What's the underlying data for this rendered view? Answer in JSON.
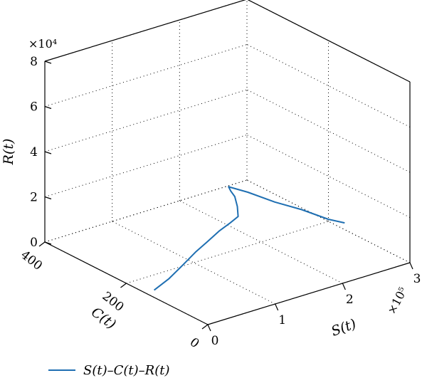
{
  "chart_data": {
    "type": "line",
    "projection": "3d",
    "grid": true,
    "legend_position": "bottom-left",
    "axes": {
      "x": {
        "label": "S(t)",
        "lim": [
          0,
          300000
        ],
        "ticks": [
          0,
          100000,
          200000,
          300000
        ],
        "tick_labels": [
          "0",
          "1",
          "2",
          "3"
        ],
        "multiplier": "×10⁵"
      },
      "y": {
        "label": "C(t)",
        "lim": [
          0,
          400
        ],
        "ticks": [
          0,
          200,
          400
        ],
        "tick_labels": [
          "0",
          "200",
          "400"
        ]
      },
      "z": {
        "label": "R(t)",
        "lim": [
          0,
          80000
        ],
        "ticks": [
          0,
          20000,
          40000,
          60000,
          80000
        ],
        "tick_labels": [
          "0",
          "2",
          "4",
          "6",
          "8"
        ],
        "multiplier": "×10⁴"
      }
    },
    "series": [
      {
        "name": "S(t)–C(t)–R(t)",
        "color": "#1f6fb2",
        "points": [
          {
            "x": 5000,
            "y": 140,
            "z": 2000
          },
          {
            "x": 15000,
            "y": 120,
            "z": 8000
          },
          {
            "x": 23000,
            "y": 100,
            "z": 15000
          },
          {
            "x": 30000,
            "y": 80,
            "z": 22000
          },
          {
            "x": 36000,
            "y": 60,
            "z": 28000
          },
          {
            "x": 41000,
            "y": 40,
            "z": 34000
          },
          {
            "x": 45000,
            "y": 20,
            "z": 39000
          },
          {
            "x": 48000,
            "y": 5,
            "z": 43000
          },
          {
            "x": 45000,
            "y": 2,
            "z": 48000
          },
          {
            "x": 40000,
            "y": 0,
            "z": 53000
          },
          {
            "x": 34000,
            "y": 0,
            "z": 56000
          },
          {
            "x": 31500,
            "y": 1,
            "z": 58000
          },
          {
            "x": 60000,
            "y": 1,
            "z": 53000
          },
          {
            "x": 100000,
            "y": 1,
            "z": 45000
          },
          {
            "x": 140000,
            "y": 1,
            "z": 38000
          },
          {
            "x": 180000,
            "y": 2,
            "z": 30000
          },
          {
            "x": 205000,
            "y": 3,
            "z": 26000
          }
        ]
      }
    ]
  }
}
